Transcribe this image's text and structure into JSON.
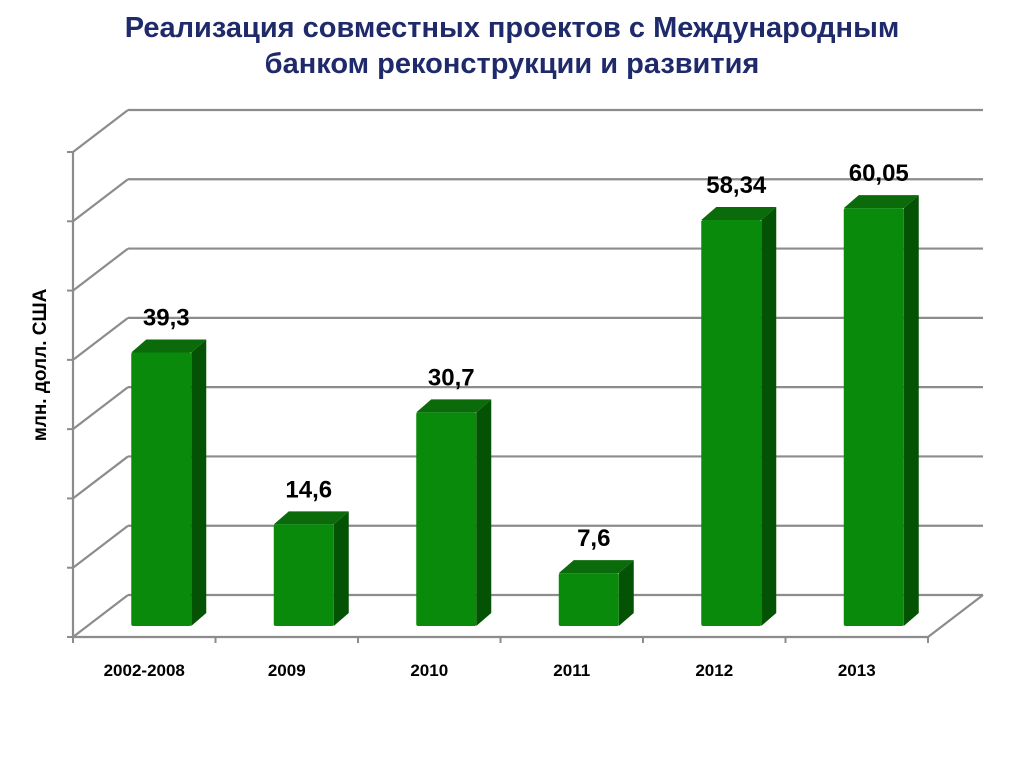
{
  "title": {
    "line1": "Реализация совместных проектов с Международным",
    "line2": "банком реконструкции и развития"
  },
  "chart_data": {
    "type": "bar",
    "title": "Реализация совместных проектов с Международным банком реконструкции и развития",
    "categories": [
      "2002-2008",
      "2009",
      "2010",
      "2011",
      "2012",
      "2013"
    ],
    "values": [
      39.3,
      14.6,
      30.7,
      7.6,
      58.34,
      60.05
    ],
    "value_labels": [
      "39,3",
      "14,6",
      "30,7",
      "7,6",
      "58,34",
      "60,05"
    ],
    "ylabel": "млн. долл. США",
    "xlabel": "",
    "ylim": [
      0,
      70
    ],
    "grid": true,
    "style": "3d-column",
    "colors": {
      "bar_front": "#0a8a0a",
      "bar_side": "#045204",
      "bar_top": "#0b6b0b",
      "grid": "#8c8c8c"
    }
  }
}
